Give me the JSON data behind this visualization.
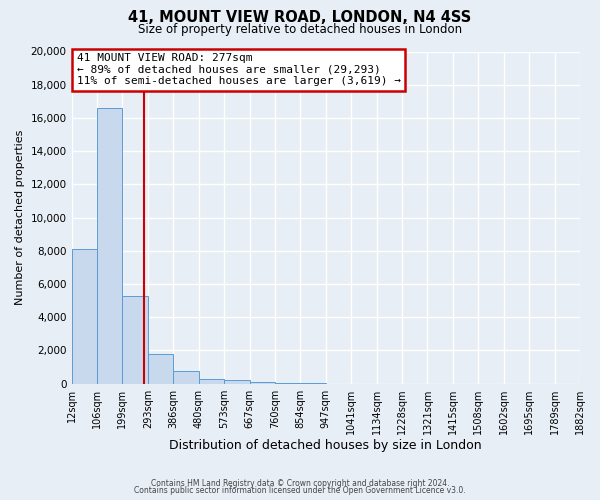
{
  "title": "41, MOUNT VIEW ROAD, LONDON, N4 4SS",
  "subtitle": "Size of property relative to detached houses in London",
  "xlabel": "Distribution of detached houses by size in London",
  "ylabel": "Number of detached properties",
  "bar_color": "#c8d9ed",
  "bar_edge_color": "#5b9bd5",
  "background_color": "#e8eef5",
  "grid_color": "#ffffff",
  "red_line_x": 277,
  "annotation_title": "41 MOUNT VIEW ROAD: 277sqm",
  "annotation_line1": "← 89% of detached houses are smaller (29,293)",
  "annotation_line2": "11% of semi-detached houses are larger (3,619) →",
  "annotation_box_color": "#ffffff",
  "annotation_border_color": "#cc0000",
  "footer_line1": "Contains HM Land Registry data © Crown copyright and database right 2024.",
  "footer_line2": "Contains public sector information licensed under the Open Government Licence v3.0.",
  "bin_edges": [
    12,
    106,
    199,
    293,
    386,
    480,
    573,
    667,
    760,
    854,
    947,
    1041,
    1134,
    1228,
    1321,
    1415,
    1508,
    1602,
    1695,
    1789,
    1882
  ],
  "bin_labels": [
    "12sqm",
    "106sqm",
    "199sqm",
    "293sqm",
    "386sqm",
    "480sqm",
    "573sqm",
    "667sqm",
    "760sqm",
    "854sqm",
    "947sqm",
    "1041sqm",
    "1134sqm",
    "1228sqm",
    "1321sqm",
    "1415sqm",
    "1508sqm",
    "1602sqm",
    "1695sqm",
    "1789sqm",
    "1882sqm"
  ],
  "bar_heights": [
    8100,
    16600,
    5300,
    1800,
    750,
    300,
    200,
    120,
    60,
    20,
    0,
    0,
    0,
    0,
    0,
    0,
    0,
    0,
    0,
    0
  ],
  "ylim": [
    0,
    20000
  ],
  "yticks": [
    0,
    2000,
    4000,
    6000,
    8000,
    10000,
    12000,
    14000,
    16000,
    18000,
    20000
  ]
}
